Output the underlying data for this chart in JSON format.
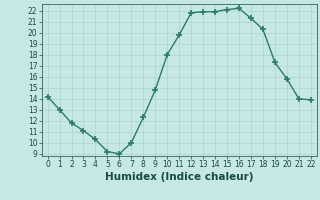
{
  "x": [
    0,
    1,
    2,
    3,
    4,
    5,
    6,
    7,
    8,
    9,
    10,
    11,
    12,
    13,
    14,
    15,
    16,
    17,
    18,
    19,
    20,
    21,
    22
  ],
  "y": [
    14.2,
    13.0,
    11.8,
    11.1,
    10.3,
    9.2,
    9.0,
    10.0,
    12.3,
    14.8,
    18.0,
    19.8,
    21.8,
    21.9,
    21.9,
    22.1,
    22.2,
    21.3,
    20.3,
    17.3,
    15.8,
    14.0,
    13.9
  ],
  "line_color": "#2d7a6a",
  "marker": "+",
  "marker_size": 4,
  "marker_lw": 1.2,
  "line_width": 1.0,
  "bg_color": "#c5e8e5",
  "grid_color": "#aed4d0",
  "xlabel": "Humidex (Indice chaleur)",
  "xlim": [
    -0.5,
    22.5
  ],
  "ylim": [
    8.8,
    22.6
  ],
  "yticks": [
    9,
    10,
    11,
    12,
    13,
    14,
    15,
    16,
    17,
    18,
    19,
    20,
    21,
    22
  ],
  "xticks": [
    0,
    1,
    2,
    3,
    4,
    5,
    6,
    7,
    8,
    9,
    10,
    11,
    12,
    13,
    14,
    15,
    16,
    17,
    18,
    19,
    20,
    21,
    22
  ],
  "tick_fontsize": 5.5,
  "xlabel_fontsize": 7.5,
  "label_color": "#1a4a40"
}
